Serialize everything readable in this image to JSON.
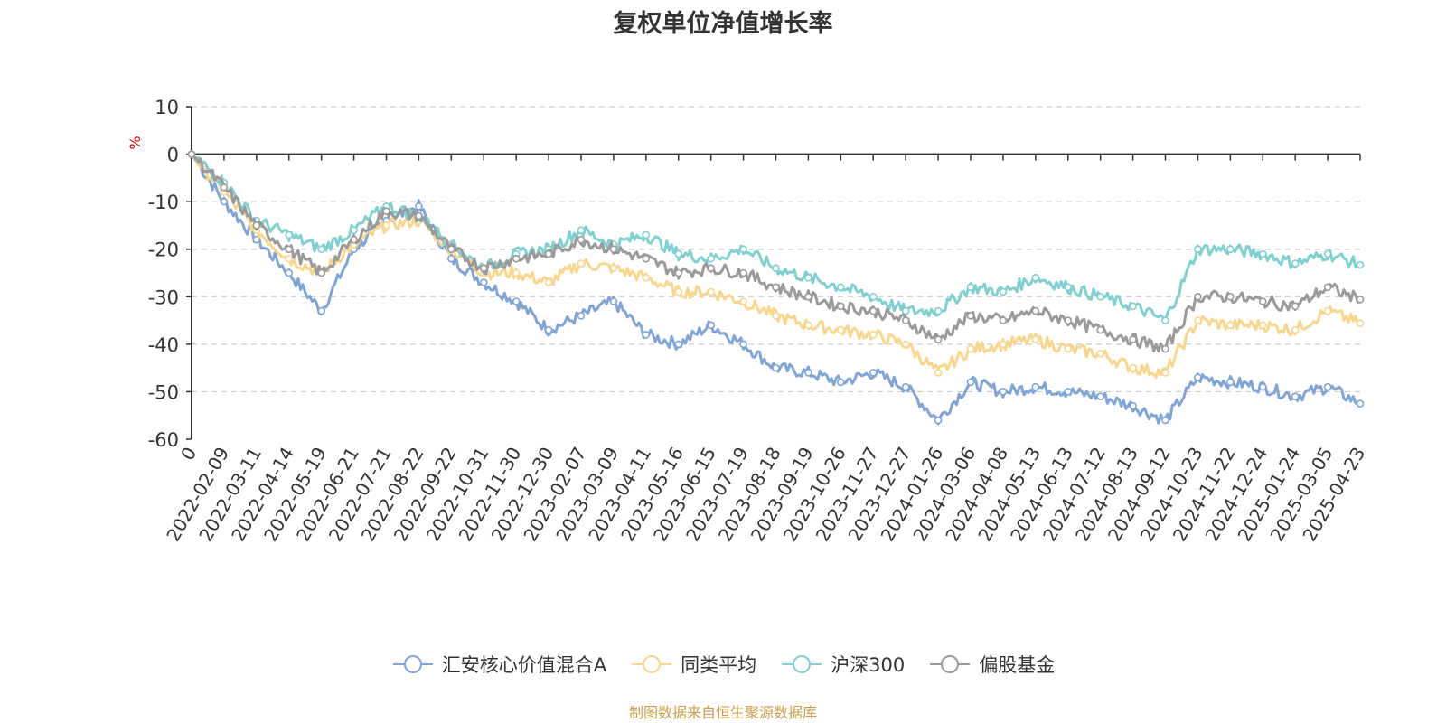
{
  "chart_data": {
    "type": "line",
    "title": "复权单位净值增长率",
    "ylabel": "%",
    "ylim": [
      -60,
      10
    ],
    "yticks": [
      10,
      0,
      -10,
      -20,
      -30,
      -40,
      -50,
      -60
    ],
    "grid": true,
    "legend_position": "bottom",
    "source_note": "制图数据来自恒生聚源数据库",
    "x_tick_labels": [
      "0",
      "2022-02-09",
      "2022-03-11",
      "2022-04-14",
      "2022-05-19",
      "2022-06-21",
      "2022-07-21",
      "2022-08-22",
      "2022-09-22",
      "2022-10-31",
      "2022-11-30",
      "2022-12-30",
      "2023-02-07",
      "2023-03-09",
      "2023-04-11",
      "2023-05-16",
      "2023-06-15",
      "2023-07-19",
      "2023-08-18",
      "2023-09-19",
      "2023-10-26",
      "2023-11-27",
      "2023-12-27",
      "2024-01-26",
      "2024-03-06",
      "2024-04-08",
      "2024-05-13",
      "2024-06-13",
      "2024-07-12",
      "2024-08-13",
      "2024-09-12",
      "2024-10-23",
      "2024-11-22",
      "2024-12-24",
      "2025-01-24",
      "2025-03-05",
      "2025-04-23"
    ],
    "x": [
      "0",
      "2022-02-09",
      "2022-03-11",
      "2022-04-14",
      "2022-05-19",
      "2022-06-21",
      "2022-07-21",
      "2022-08-22",
      "2022-09-22",
      "2022-10-31",
      "2022-11-30",
      "2022-12-30",
      "2023-02-07",
      "2023-03-09",
      "2023-04-11",
      "2023-05-16",
      "2023-06-15",
      "2023-07-19",
      "2023-08-18",
      "2023-09-19",
      "2023-10-26",
      "2023-11-27",
      "2023-12-27",
      "2024-01-26",
      "2024-03-06",
      "2024-04-08",
      "2024-05-13",
      "2024-06-13",
      "2024-07-12",
      "2024-08-13",
      "2024-09-12",
      "2024-10-23",
      "2024-11-22",
      "2024-12-24",
      "2025-01-24",
      "2025-03-05",
      "2025-04-23"
    ],
    "series": [
      {
        "name": "汇安核心价值混合A",
        "color": "#7fa5d8",
        "values": [
          0,
          -10,
          -18,
          -25,
          -33,
          -20,
          -14,
          -11,
          -22,
          -27,
          -31,
          -37,
          -34,
          -31,
          -38,
          -40,
          -36,
          -40,
          -45,
          -46,
          -48,
          -46,
          -49,
          -56,
          -48,
          -50,
          -49,
          -50,
          -51,
          -53,
          -56,
          -47,
          -48,
          -49,
          -51,
          -49,
          -52.5
        ]
      },
      {
        "name": "同类平均",
        "color": "#f9d68c",
        "values": [
          0,
          -8,
          -16,
          -22,
          -25,
          -19,
          -15,
          -14,
          -20,
          -25,
          -25,
          -27,
          -23,
          -24,
          -26,
          -29,
          -29,
          -31,
          -34,
          -36,
          -37,
          -38,
          -40,
          -46,
          -41,
          -40,
          -39,
          -41,
          -42,
          -45,
          -46,
          -35,
          -36,
          -36,
          -37,
          -33,
          -35.6
        ]
      },
      {
        "name": "沪深300",
        "color": "#7fd0d0",
        "values": [
          0,
          -6,
          -14,
          -17,
          -20,
          -16,
          -11,
          -13,
          -19,
          -24,
          -21,
          -20,
          -16,
          -19,
          -17,
          -21,
          -22,
          -20,
          -24,
          -26,
          -28,
          -30,
          -33,
          -33,
          -28,
          -29,
          -26,
          -28,
          -30,
          -32,
          -35,
          -20,
          -20,
          -21,
          -23,
          -21,
          -23.3
        ]
      },
      {
        "name": "偏股基金",
        "color": "#9a9a9a",
        "values": [
          0,
          -7,
          -15,
          -20,
          -25,
          -18,
          -12,
          -13,
          -20,
          -24,
          -22,
          -21,
          -18,
          -20,
          -22,
          -25,
          -24,
          -25,
          -28,
          -30,
          -32,
          -33,
          -35,
          -39,
          -34,
          -35,
          -33,
          -35,
          -37,
          -39,
          -41,
          -30,
          -30,
          -31,
          -32,
          -28,
          -30.6
        ]
      }
    ]
  }
}
